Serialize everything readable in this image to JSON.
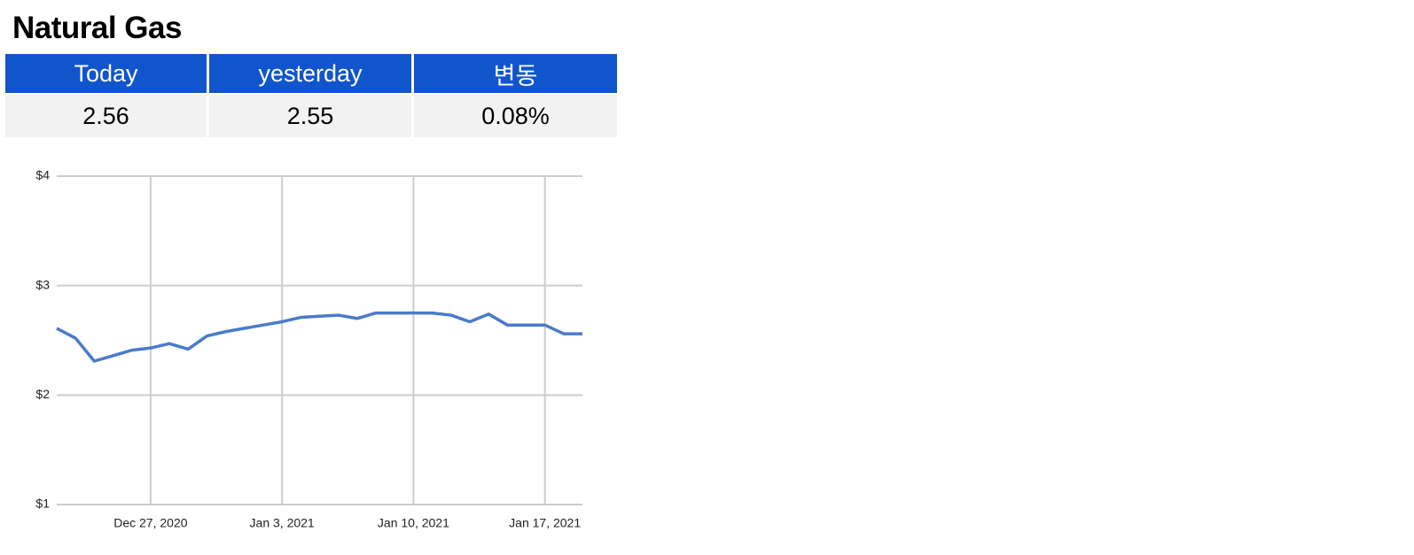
{
  "title": "Natural Gas",
  "table": {
    "header": [
      "Today",
      "yesterday",
      "변동"
    ],
    "rows": [
      [
        "2.56",
        "2.55",
        "0.08%"
      ]
    ]
  },
  "chart_data": {
    "type": "line",
    "x": [
      "2020-12-22",
      "2020-12-23",
      "2020-12-24",
      "2020-12-25",
      "2020-12-26",
      "2020-12-27",
      "2020-12-28",
      "2020-12-29",
      "2020-12-30",
      "2020-12-31",
      "2021-01-01",
      "2021-01-02",
      "2021-01-03",
      "2021-01-04",
      "2021-01-05",
      "2021-01-06",
      "2021-01-07",
      "2021-01-08",
      "2021-01-09",
      "2021-01-10",
      "2021-01-11",
      "2021-01-12",
      "2021-01-13",
      "2021-01-14",
      "2021-01-15",
      "2021-01-16",
      "2021-01-17",
      "2021-01-18",
      "2021-01-19"
    ],
    "values": [
      2.61,
      2.52,
      2.31,
      2.36,
      2.41,
      2.43,
      2.47,
      2.42,
      2.54,
      2.58,
      2.61,
      2.64,
      2.67,
      2.71,
      2.72,
      2.73,
      2.7,
      2.75,
      2.75,
      2.75,
      2.75,
      2.73,
      2.67,
      2.74,
      2.64,
      2.64,
      2.64,
      2.56,
      2.56
    ],
    "color": "#4a7bc8",
    "xlim": [
      "2020-12-22",
      "2021-01-19"
    ],
    "xticks": [
      {
        "value": "2020-12-27",
        "label": "Dec 27, 2020"
      },
      {
        "value": "2021-01-03",
        "label": "Jan 3, 2021"
      },
      {
        "value": "2021-01-10",
        "label": "Jan 10, 2021"
      },
      {
        "value": "2021-01-17",
        "label": "Jan 17, 2021"
      }
    ],
    "ylim": [
      1,
      4
    ],
    "yticks": [
      {
        "value": 1,
        "label": "$1"
      },
      {
        "value": 2,
        "label": "$2"
      },
      {
        "value": 3,
        "label": "$3"
      },
      {
        "value": 4,
        "label": "$4"
      }
    ],
    "grid": true
  }
}
